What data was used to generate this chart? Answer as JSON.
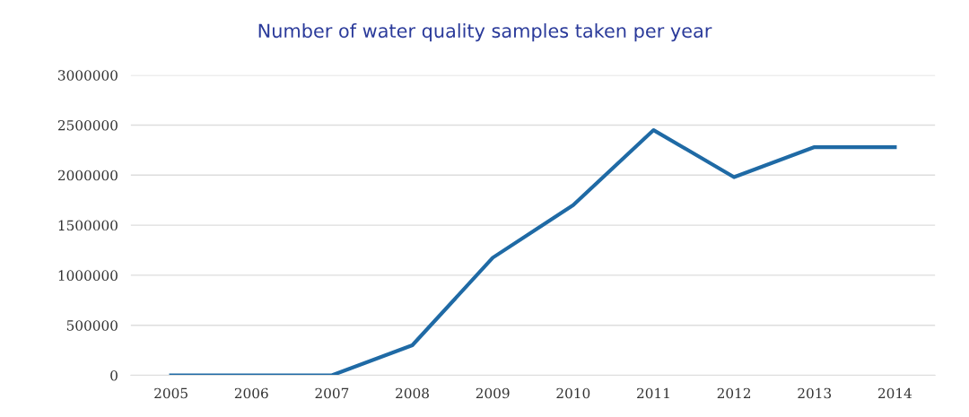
{
  "chart_data": {
    "type": "line",
    "title": "Number of water quality samples taken per year",
    "categories": [
      "2005",
      "2006",
      "2007",
      "2008",
      "2009",
      "2010",
      "2011",
      "2012",
      "2013",
      "2014"
    ],
    "series": [
      {
        "color": "#1f6aa5",
        "values": [
          0,
          0,
          0,
          300000,
          1175000,
          1700000,
          2450000,
          1980000,
          2280000,
          2280000
        ]
      }
    ],
    "ylim": [
      0,
      3000000
    ],
    "yticks": [
      0,
      500000,
      1000000,
      1500000,
      2000000,
      2500000,
      3000000
    ],
    "grid": "y",
    "legend": false,
    "marker": "none",
    "line_style": "solid"
  }
}
